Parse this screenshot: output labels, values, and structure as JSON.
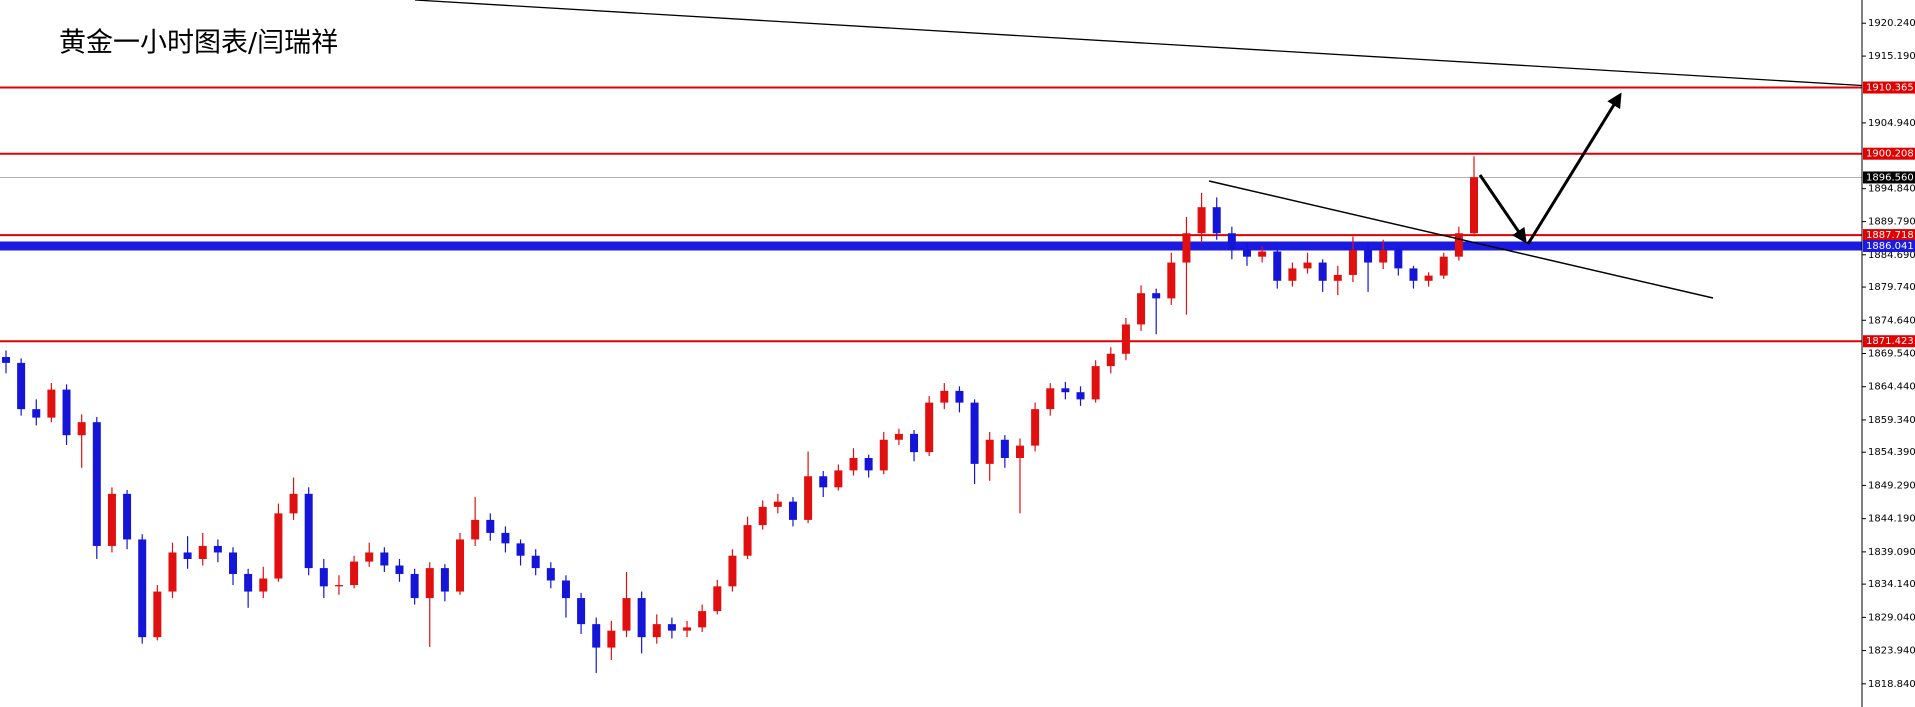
{
  "chart_data": {
    "type": "candlestick",
    "title": "黄金一小时图表/闫瑞祥",
    "up_color": "#e01010",
    "down_color": "#1515d8",
    "ylim": [
      1815.28,
      1923.8
    ],
    "yticks": [
      {
        "value": 1920.24,
        "label": "1920.240"
      },
      {
        "value": 1915.19,
        "label": "1915.190"
      },
      {
        "value": 1904.94,
        "label": "1904.940"
      },
      {
        "value": 1894.84,
        "label": "1894.840"
      },
      {
        "value": 1889.79,
        "label": "1889.790"
      },
      {
        "value": 1884.69,
        "label": "1884.690"
      },
      {
        "value": 1879.74,
        "label": "1879.740"
      },
      {
        "value": 1874.64,
        "label": "1874.640"
      },
      {
        "value": 1869.54,
        "label": "1869.540"
      },
      {
        "value": 1864.44,
        "label": "1864.440"
      },
      {
        "value": 1859.34,
        "label": "1859.340"
      },
      {
        "value": 1854.39,
        "label": "1854.390"
      },
      {
        "value": 1849.29,
        "label": "1849.290"
      },
      {
        "value": 1844.19,
        "label": "1844.190"
      },
      {
        "value": 1839.09,
        "label": "1839.090"
      },
      {
        "value": 1834.14,
        "label": "1834.140"
      },
      {
        "value": 1829.04,
        "label": "1829.040"
      },
      {
        "value": 1823.94,
        "label": "1823.940"
      },
      {
        "value": 1818.84,
        "label": "1818.840"
      }
    ],
    "levels": [
      {
        "value": 1910.365,
        "color": "#e00000"
      },
      {
        "value": 1900.208,
        "color": "#e00000"
      },
      {
        "value": 1896.56,
        "label": "1896.560",
        "color": "#000000"
      },
      {
        "value": 1887.718,
        "color": "#e00000"
      },
      {
        "value": 1886.041,
        "color": "#1a1ae0"
      },
      {
        "value": 1871.423,
        "color": "#e00000"
      }
    ],
    "open": [
      1869.0,
      1868.1,
      1861.0,
      1859.7,
      1864.0,
      1857.0,
      1859.0,
      1840.0,
      1848.0,
      1841.0,
      1826.0,
      1833.0,
      1839.0,
      1838.0,
      1840.0,
      1839.0,
      1835.7,
      1833.0,
      1835.0,
      1845.0,
      1848.0,
      1836.6,
      1833.8,
      1834.0,
      1837.6,
      1839.0,
      1837.0,
      1835.7,
      1832.0,
      1836.6,
      1833.0,
      1841.0,
      1844.0,
      1842.0,
      1840.4,
      1838.5,
      1836.6,
      1834.7,
      1832.0,
      1828.0,
      1824.4,
      1827.0,
      1832.0,
      1826.0,
      1828.0,
      1827.0,
      1827.5,
      1830.0,
      1833.8,
      1838.5,
      1843.2,
      1846.0,
      1846.8,
      1844.0,
      1850.7,
      1849.0,
      1851.6,
      1853.5,
      1851.6,
      1856.3,
      1857.2,
      1854.4,
      1862.0,
      1863.8,
      1862.0,
      1852.6,
      1856.3,
      1853.5,
      1855.4,
      1861.0,
      1864.2,
      1863.6,
      1862.5,
      1867.6,
      1869.5,
      1874.0,
      1878.8,
      1878.0,
      1883.5,
      1888.0,
      1892.0,
      1888.0,
      1885.4,
      1884.4,
      1885.2,
      1880.7,
      1882.6,
      1883.5,
      1880.7,
      1881.6,
      1885.4,
      1883.5,
      1885.4,
      1882.6,
      1880.7,
      1881.5,
      1884.4,
      1888.0
    ],
    "high": [
      1870.0,
      1868.8,
      1862.5,
      1865.0,
      1864.8,
      1860.2,
      1859.8,
      1849.0,
      1848.6,
      1841.8,
      1834.0,
      1840.5,
      1841.5,
      1842.0,
      1841.0,
      1839.8,
      1836.5,
      1836.8,
      1846.5,
      1850.5,
      1849.0,
      1838.0,
      1835.5,
      1838.5,
      1840.5,
      1839.8,
      1838.0,
      1836.5,
      1837.5,
      1837.2,
      1842.0,
      1847.5,
      1845.0,
      1843.0,
      1841.0,
      1839.5,
      1837.5,
      1835.5,
      1832.8,
      1829.0,
      1828.5,
      1836.0,
      1833.0,
      1829.5,
      1829.0,
      1828.5,
      1831.0,
      1834.8,
      1839.5,
      1844.5,
      1847.0,
      1848.0,
      1847.5,
      1854.5,
      1851.5,
      1852.5,
      1855.0,
      1854.0,
      1857.5,
      1858.0,
      1857.8,
      1863.0,
      1865.0,
      1864.5,
      1862.5,
      1857.5,
      1857.0,
      1856.5,
      1862.0,
      1865.0,
      1865.2,
      1864.5,
      1868.5,
      1870.5,
      1875.0,
      1880.0,
      1879.5,
      1885.0,
      1890.5,
      1894.2,
      1893.5,
      1889.0,
      1886.5,
      1886.0,
      1886.0,
      1883.5,
      1885.0,
      1884.0,
      1883.0,
      1887.5,
      1886.5,
      1887.0,
      1886.0,
      1883.0,
      1882.0,
      1885.0,
      1889.0,
      1899.8
    ],
    "low": [
      1866.5,
      1860.0,
      1858.5,
      1859.0,
      1855.5,
      1852.0,
      1838.0,
      1839.0,
      1839.5,
      1825.0,
      1825.5,
      1832.0,
      1836.5,
      1837.0,
      1837.5,
      1834.0,
      1830.5,
      1832.0,
      1834.5,
      1844.0,
      1835.5,
      1832.0,
      1832.5,
      1833.5,
      1836.8,
      1836.0,
      1834.5,
      1831.0,
      1824.5,
      1831.5,
      1832.5,
      1840.0,
      1840.8,
      1839.0,
      1837.0,
      1835.5,
      1833.5,
      1829.0,
      1826.5,
      1820.5,
      1822.5,
      1826.0,
      1823.5,
      1825.0,
      1825.8,
      1826.0,
      1826.8,
      1829.5,
      1833.0,
      1838.0,
      1842.5,
      1845.0,
      1843.0,
      1843.5,
      1847.5,
      1848.5,
      1850.8,
      1850.5,
      1851.0,
      1855.5,
      1853.0,
      1853.8,
      1861.0,
      1860.5,
      1849.5,
      1850.0,
      1852.0,
      1845.0,
      1854.5,
      1860.0,
      1862.5,
      1861.5,
      1862.0,
      1866.5,
      1868.5,
      1873.0,
      1872.5,
      1877.0,
      1875.5,
      1886.5,
      1887.0,
      1884.0,
      1883.0,
      1883.5,
      1879.5,
      1879.8,
      1881.8,
      1879.0,
      1878.5,
      1880.5,
      1879.0,
      1882.5,
      1881.5,
      1879.5,
      1879.8,
      1881.0,
      1883.8,
      1887.5
    ],
    "close": [
      1868.1,
      1861.0,
      1859.7,
      1864.0,
      1857.0,
      1859.0,
      1840.0,
      1848.0,
      1841.0,
      1826.0,
      1833.0,
      1839.0,
      1838.0,
      1840.0,
      1839.0,
      1835.7,
      1833.0,
      1835.0,
      1845.0,
      1848.0,
      1836.6,
      1833.8,
      1834.0,
      1837.6,
      1839.0,
      1837.0,
      1835.7,
      1832.0,
      1836.6,
      1833.0,
      1841.0,
      1844.0,
      1842.0,
      1840.4,
      1838.5,
      1836.6,
      1834.7,
      1832.0,
      1828.0,
      1824.4,
      1827.0,
      1832.0,
      1826.0,
      1828.0,
      1827.0,
      1827.5,
      1830.0,
      1833.8,
      1838.5,
      1843.2,
      1846.0,
      1846.8,
      1844.0,
      1850.7,
      1849.0,
      1851.6,
      1853.5,
      1851.6,
      1856.3,
      1857.2,
      1854.4,
      1862.0,
      1863.8,
      1862.0,
      1852.6,
      1856.3,
      1853.5,
      1855.4,
      1861.0,
      1864.2,
      1863.6,
      1862.5,
      1867.6,
      1869.5,
      1874.0,
      1878.8,
      1878.0,
      1883.5,
      1888.0,
      1892.0,
      1888.0,
      1885.4,
      1884.4,
      1885.2,
      1880.7,
      1882.6,
      1883.5,
      1880.7,
      1881.6,
      1885.4,
      1883.5,
      1885.4,
      1882.6,
      1880.7,
      1881.5,
      1884.4,
      1888.0,
      1896.6
    ]
  }
}
